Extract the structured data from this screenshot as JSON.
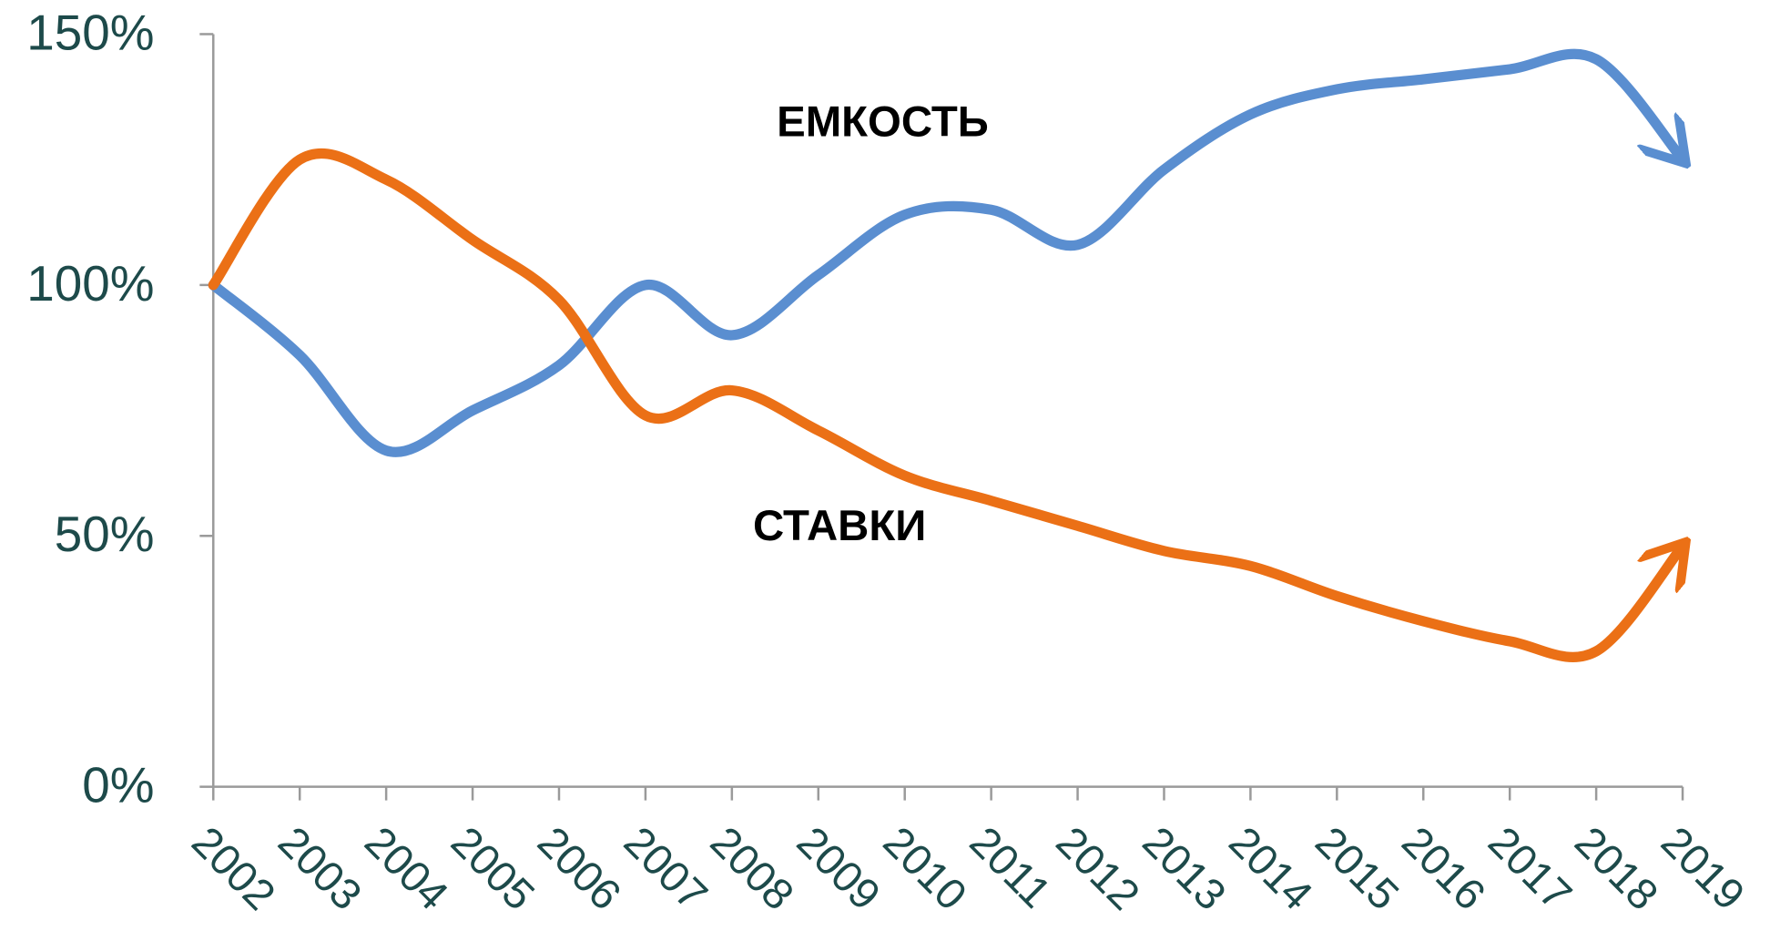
{
  "chart_data": {
    "type": "line",
    "categories": [
      "2002",
      "2003",
      "2004",
      "2005",
      "2006",
      "2007",
      "2008",
      "2009",
      "2010",
      "2011",
      "2012",
      "2013",
      "2014",
      "2015",
      "2016",
      "2017",
      "2018",
      "2019"
    ],
    "series": [
      {
        "name": "ЕМКОСТЬ",
        "color": "#5a8ed0",
        "values": [
          100,
          86,
          67,
          75,
          84,
          100,
          90,
          102,
          114,
          115,
          108,
          123,
          134,
          139,
          141,
          143,
          145,
          125
        ]
      },
      {
        "name": "СТАВКИ",
        "color": "#eb7016",
        "values": [
          100,
          125,
          121,
          109,
          97,
          74,
          79,
          71,
          62,
          57,
          52,
          47,
          44,
          38,
          33,
          29,
          27,
          48
        ]
      }
    ],
    "ylim": [
      0,
      150
    ],
    "yticks": [
      {
        "value": 0,
        "label": "0%"
      },
      {
        "value": 50,
        "label": "50%"
      },
      {
        "value": 100,
        "label": "100%"
      },
      {
        "value": 150,
        "label": "150%"
      }
    ]
  }
}
